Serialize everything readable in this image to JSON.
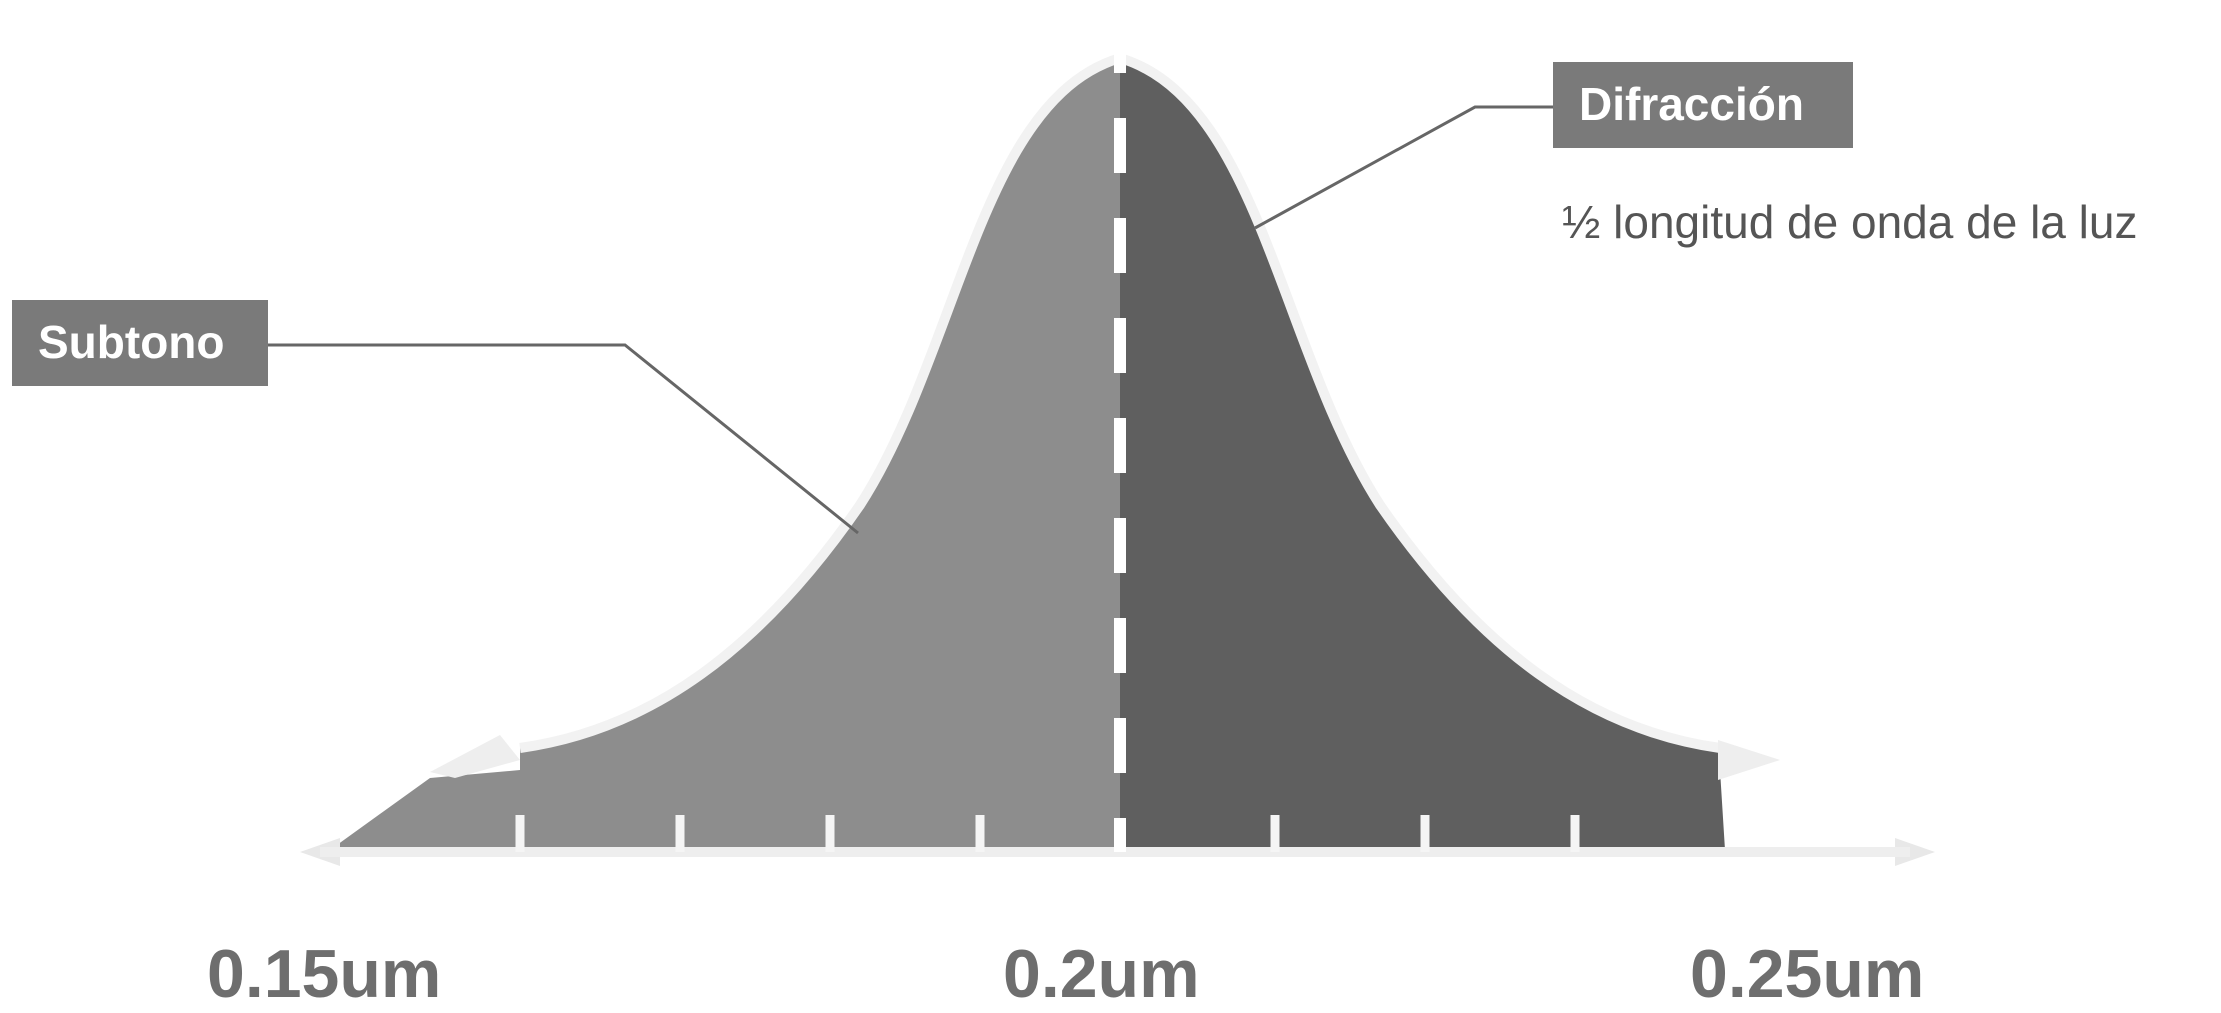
{
  "labels": {
    "subtono": "Subtono",
    "difraccion": "Difracción",
    "note": "½ longitud de onda de la luz"
  },
  "axis": {
    "ticks": [
      "0.15um",
      "0.2um",
      "0.25um"
    ]
  },
  "colors": {
    "left_fill": "#8d8d8d",
    "right_fill": "#5f5f5f",
    "label_bg": "#7a7a7a",
    "outline": "#f2f2f2",
    "leader": "#666666"
  }
}
